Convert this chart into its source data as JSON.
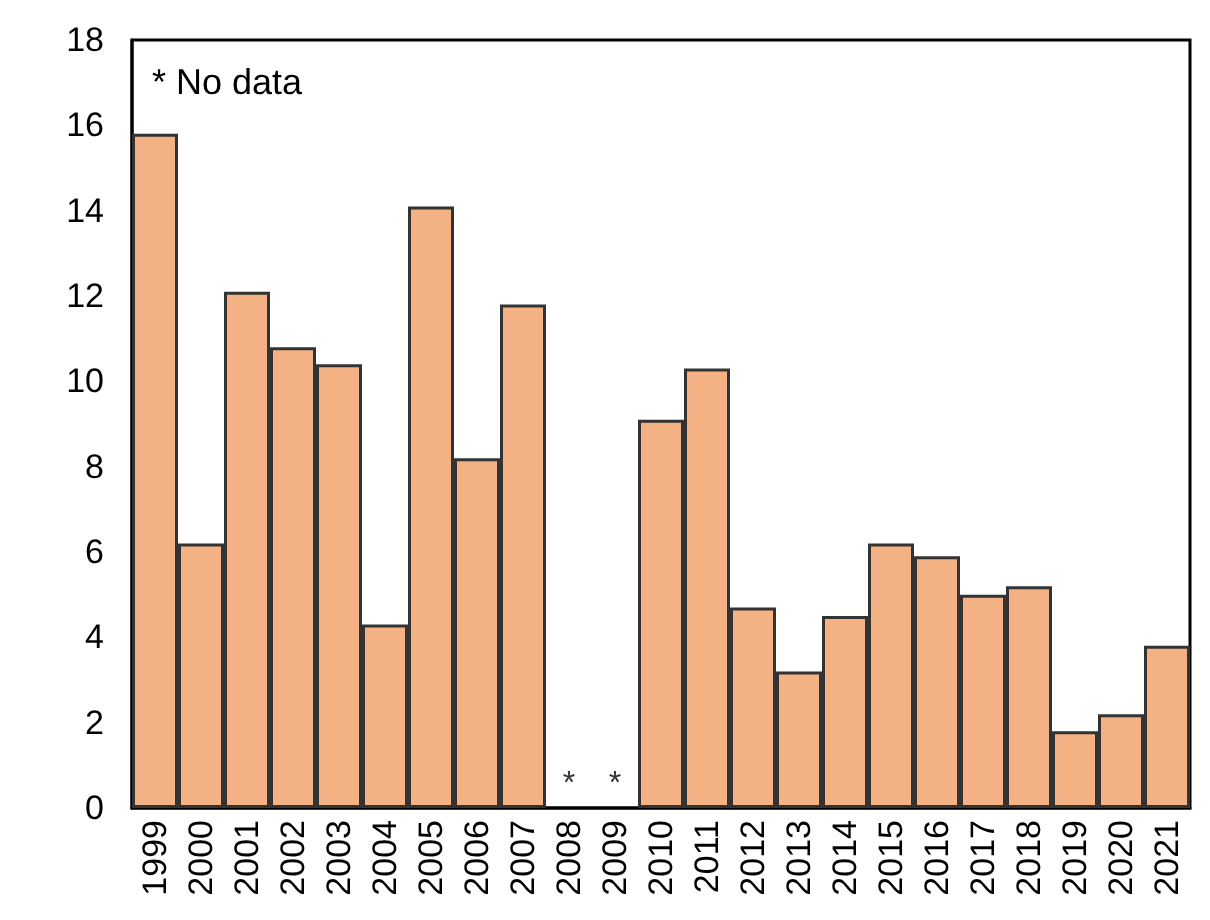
{
  "chart_data": {
    "type": "bar",
    "categories": [
      "1999",
      "2000",
      "2001",
      "2002",
      "2003",
      "2004",
      "2005",
      "2006",
      "2007",
      "2008",
      "2009",
      "2010",
      "2011",
      "2012",
      "2013",
      "2014",
      "2015",
      "2016",
      "2017",
      "2018",
      "2019",
      "2020",
      "2021"
    ],
    "values": [
      15.8,
      6.2,
      12.1,
      10.8,
      10.4,
      4.3,
      14.1,
      8.2,
      11.8,
      null,
      null,
      9.1,
      10.3,
      4.7,
      3.2,
      4.5,
      6.2,
      5.9,
      5.0,
      5.2,
      1.8,
      2.2,
      3.8
    ],
    "color": "#f4b183",
    "ylim": [
      0,
      18
    ],
    "yticks": [
      0,
      2,
      4,
      6,
      8,
      10,
      12,
      14,
      16,
      18
    ],
    "grid": false,
    "annotations": [
      "* No data",
      "*",
      "*"
    ]
  }
}
